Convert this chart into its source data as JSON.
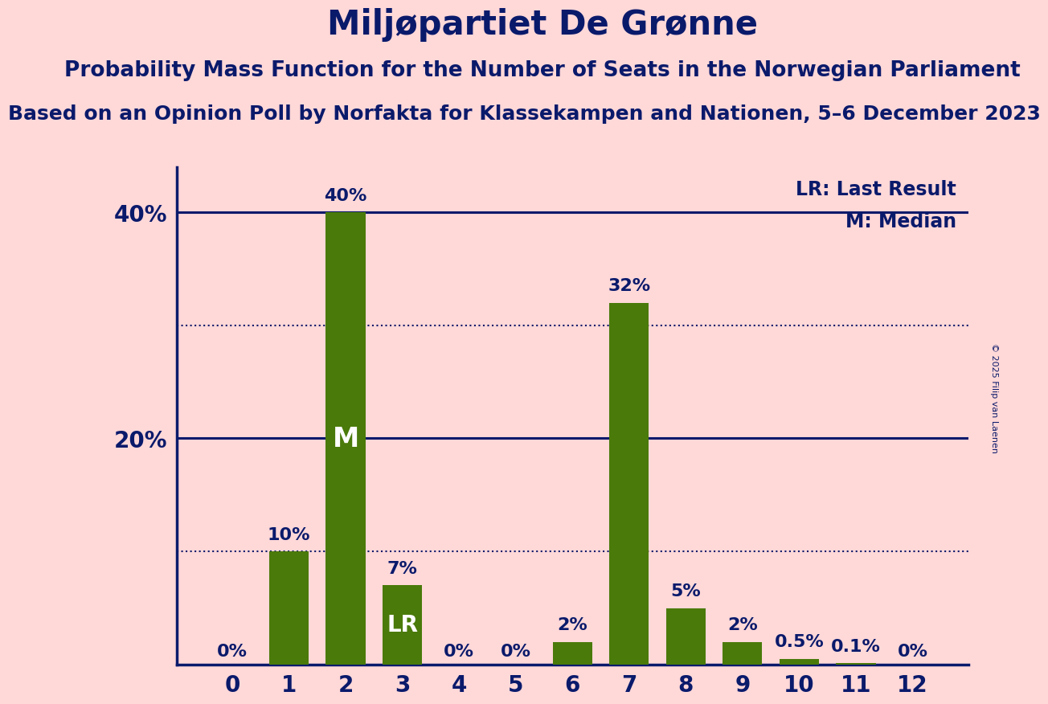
{
  "title": "Miljøpartiet De Grønne",
  "subtitle1": "Probability Mass Function for the Number of Seats in the Norwegian Parliament",
  "subtitle2": "Based on an Opinion Poll by Norfakta for Klassekampen and Nationen, 5–6 December 2023",
  "copyright": "© 2025 Filip van Laenen",
  "categories": [
    0,
    1,
    2,
    3,
    4,
    5,
    6,
    7,
    8,
    9,
    10,
    11,
    12
  ],
  "values": [
    0.0,
    10.0,
    40.0,
    7.0,
    0.0,
    0.0,
    2.0,
    32.0,
    5.0,
    2.0,
    0.5,
    0.1,
    0.0
  ],
  "labels": [
    "0%",
    "10%",
    "40%",
    "7%",
    "0%",
    "0%",
    "2%",
    "32%",
    "5%",
    "2%",
    "0.5%",
    "0.1%",
    "0%"
  ],
  "bar_color": "#4a7a0a",
  "background_color": "#FFD8D8",
  "title_color": "#0a1a6b",
  "axis_color": "#0a1a6b",
  "bar_label_color_outside": "#0a1a6b",
  "bar_label_color_inside": "#ffffff",
  "lr_bar": 3,
  "median_bar": 2,
  "ylim": [
    0,
    44
  ],
  "yticks": [
    20,
    40
  ],
  "dotted_lines": [
    10,
    30
  ],
  "solid_lines": [
    20,
    40
  ],
  "title_fontsize": 30,
  "subtitle1_fontsize": 19,
  "subtitle2_fontsize": 18,
  "axis_tick_fontsize": 20,
  "bar_label_fontsize": 16,
  "legend_fontsize": 17,
  "inside_label_fontsize_M": 24,
  "inside_label_fontsize_LR": 20
}
